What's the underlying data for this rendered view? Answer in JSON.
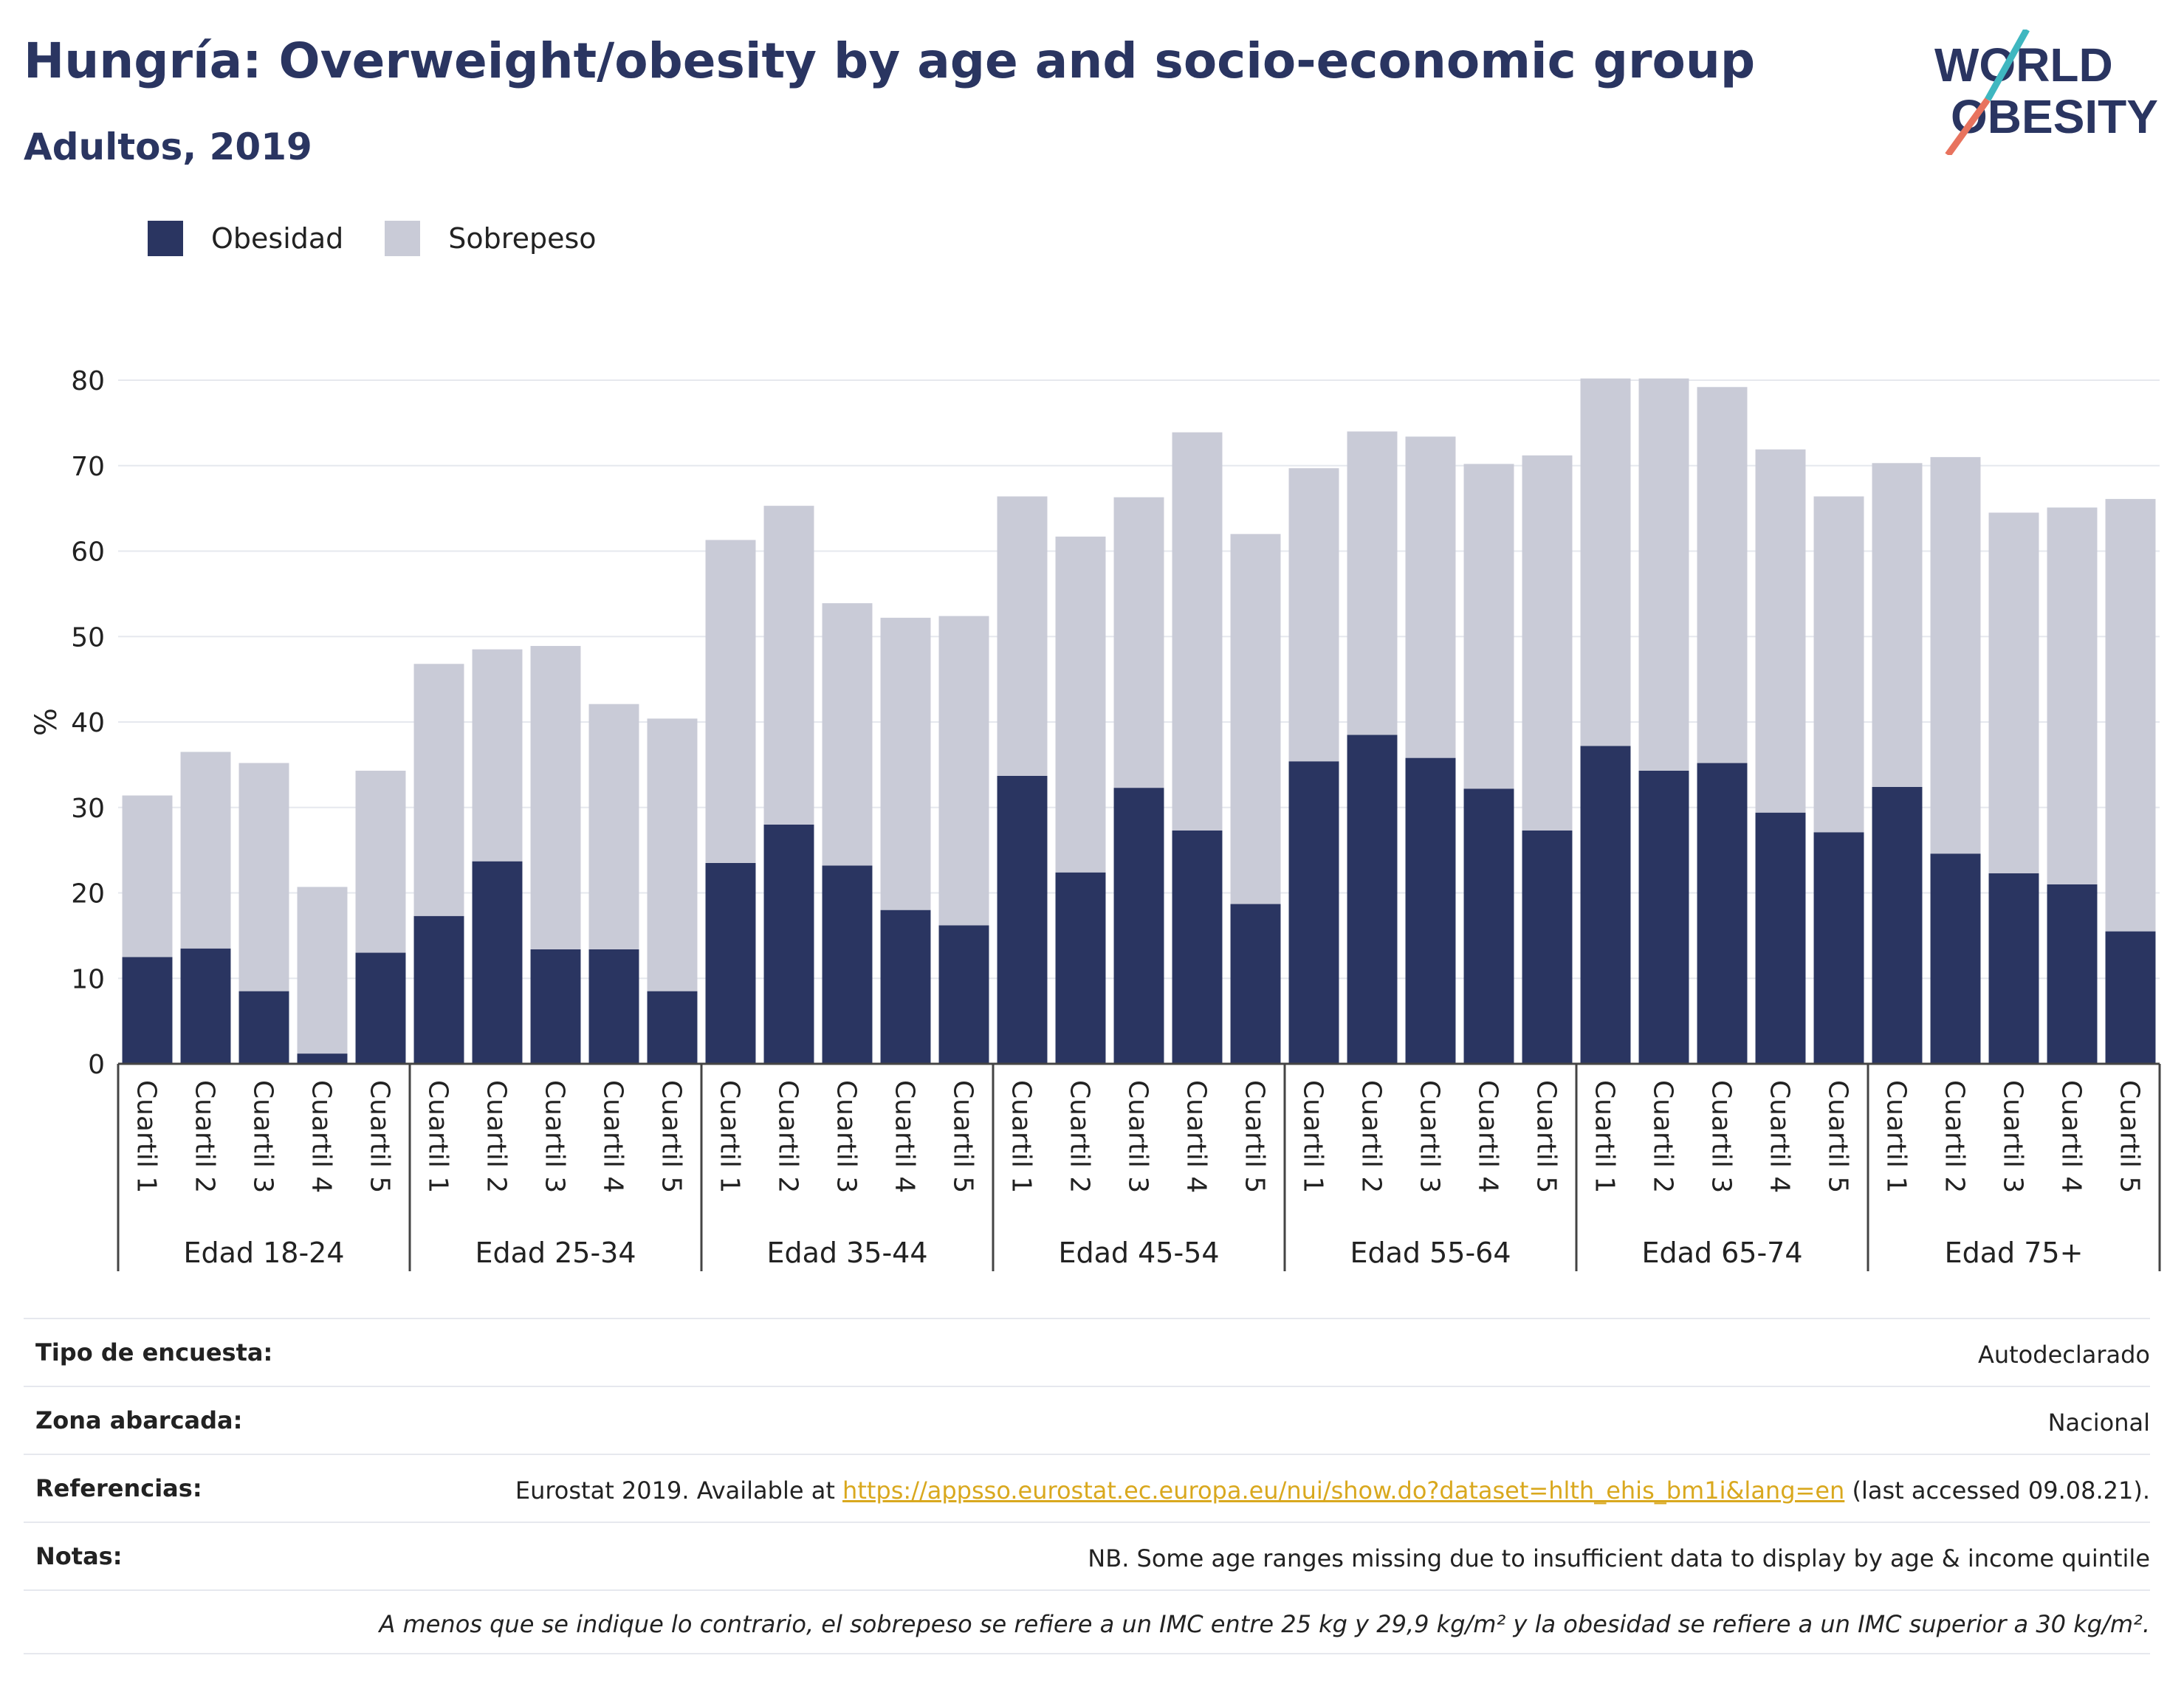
{
  "header": {
    "title": "Hungría: Overweight/obesity by age and socio-economic group",
    "subtitle": "Adultos, 2019"
  },
  "logo": {
    "line1": "WORLD",
    "line2": "OBESITY",
    "accent1": "#3fb7c0",
    "accent2": "#e8735e"
  },
  "colors": {
    "obesity": "#2a3561",
    "overweight": "#c9cbd7",
    "text": "#2a3561",
    "grid": "#e6e8ee"
  },
  "chart_data": {
    "type": "bar",
    "stacked": true,
    "ylabel": "%",
    "ylim": [
      0,
      80
    ],
    "yticks": [
      0,
      10,
      20,
      30,
      40,
      50,
      60,
      70,
      80
    ],
    "grid": true,
    "legend_position": "top-left",
    "groups": [
      "Edad 18-24",
      "Edad 25-34",
      "Edad 35-44",
      "Edad 45-54",
      "Edad 55-64",
      "Edad 65-74",
      "Edad 75+"
    ],
    "subcategories": [
      "Cuartil 1",
      "Cuartil 2",
      "Cuartil 3",
      "Cuartil 4",
      "Cuartil 5"
    ],
    "series": [
      {
        "name": "Obesidad",
        "values": [
          12.5,
          13.5,
          8.5,
          1.2,
          13.0,
          17.3,
          23.7,
          13.4,
          13.4,
          8.5,
          23.5,
          28.0,
          23.2,
          18.0,
          16.2,
          33.7,
          22.4,
          32.3,
          27.3,
          18.7,
          35.4,
          38.5,
          35.8,
          32.2,
          27.3,
          37.2,
          34.3,
          35.2,
          29.4,
          27.1,
          32.4,
          24.6,
          22.3,
          21.0,
          15.5
        ]
      },
      {
        "name": "Sobrepeso",
        "values": [
          18.9,
          23.0,
          26.7,
          19.5,
          21.3,
          29.5,
          24.8,
          35.5,
          28.7,
          31.9,
          37.8,
          37.3,
          30.7,
          34.2,
          36.2,
          32.7,
          39.3,
          34.0,
          46.6,
          43.3,
          34.3,
          35.5,
          37.6,
          38.0,
          43.9,
          43.0,
          45.9,
          44.0,
          42.5,
          39.3,
          37.9,
          46.4,
          42.2,
          44.1,
          50.6
        ]
      }
    ]
  },
  "meta": {
    "rows": [
      {
        "label": "Tipo de encuesta:",
        "value": "Autodeclarado"
      },
      {
        "label": "Zona abarcada:",
        "value": "Nacional"
      },
      {
        "label": "Referencias:",
        "value_pre": "Eurostat 2019. Available at ",
        "link": "https://appsso.eurostat.ec.europa.eu/nui/show.do?dataset=hlth_ehis_bm1i&lang=en",
        "value_post": " (last accessed 09.08.21)."
      },
      {
        "label": "Notas:",
        "value": "NB. Some age ranges missing due to insufficient data to display by age & income quintile"
      }
    ],
    "footnote": "A menos que se indique lo contrario, el sobrepeso se refiere a un IMC entre 25 kg y 29,9 kg/m² y la obesidad se refiere a un IMC superior a 30 kg/m²."
  }
}
